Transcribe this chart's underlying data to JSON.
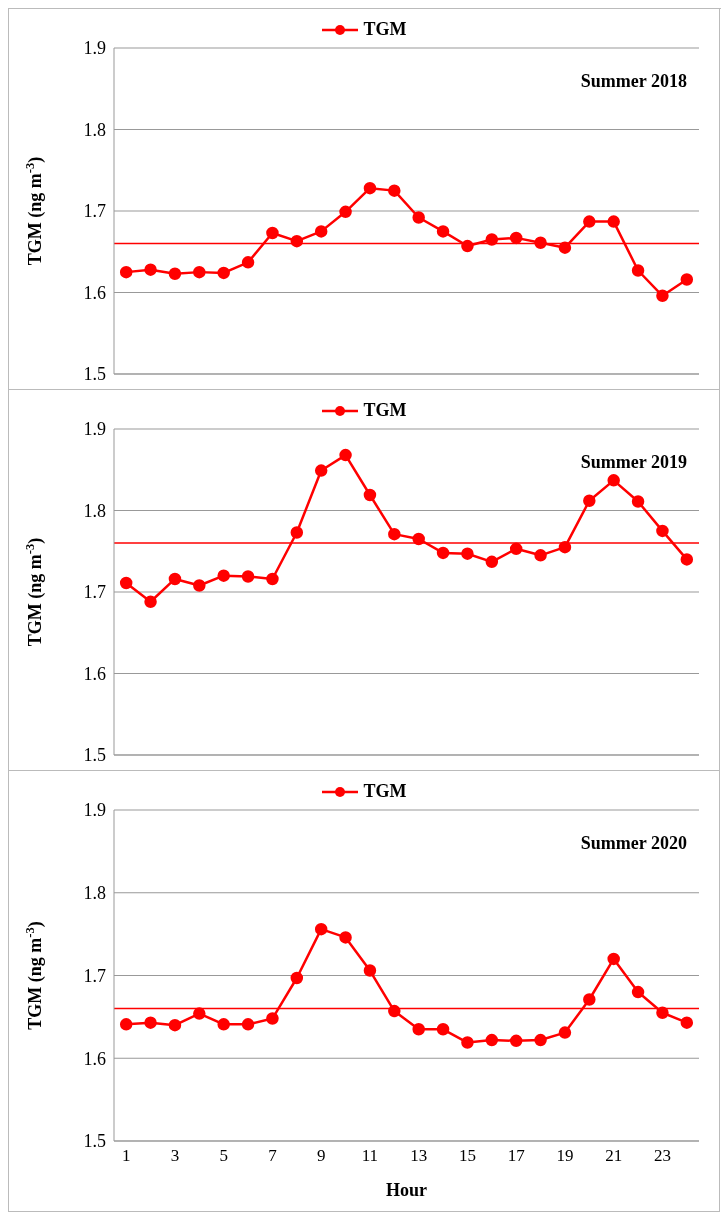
{
  "chart_data": [
    {
      "type": "line",
      "annotations": [
        "Summer 2018"
      ],
      "ylabel": "TGM  (ng m$^{-3}$)",
      "x": [
        1,
        2,
        3,
        4,
        5,
        6,
        7,
        8,
        9,
        10,
        11,
        12,
        13,
        14,
        15,
        16,
        17,
        18,
        19,
        20,
        21,
        22,
        23,
        24
      ],
      "xlim": [
        0.5,
        24.5
      ],
      "xticks": [
        1,
        3,
        5,
        7,
        9,
        11,
        13,
        15,
        17,
        19,
        21,
        23
      ],
      "ylim": [
        1.5,
        1.9
      ],
      "yticks": [
        1.5,
        1.6,
        1.7,
        1.8,
        1.9
      ],
      "tick_labels": "y",
      "grid": "y",
      "legend": "top",
      "marker": "circle",
      "line_style": "solid",
      "series": [
        {
          "name": "TGM",
          "color": "#ff0000",
          "values": [
            1.625,
            1.628,
            1.623,
            1.625,
            1.624,
            1.637,
            1.673,
            1.663,
            1.675,
            1.699,
            1.728,
            1.725,
            1.692,
            1.675,
            1.657,
            1.665,
            1.667,
            1.661,
            1.655,
            1.687,
            1.687,
            1.627,
            1.596,
            1.616
          ]
        }
      ],
      "ref_lines": [
        {
          "axis": "y",
          "value": 1.66,
          "color": "#ff0000"
        }
      ]
    },
    {
      "type": "line",
      "annotations": [
        "Summer 2019"
      ],
      "ylabel": "TGM  (ng m$^{-3}$)",
      "x": [
        1,
        2,
        3,
        4,
        5,
        6,
        7,
        8,
        9,
        10,
        11,
        12,
        13,
        14,
        15,
        16,
        17,
        18,
        19,
        20,
        21,
        22,
        23,
        24
      ],
      "xlim": [
        0.5,
        24.5
      ],
      "xticks": [
        1,
        3,
        5,
        7,
        9,
        11,
        13,
        15,
        17,
        19,
        21,
        23
      ],
      "ylim": [
        1.5,
        1.9
      ],
      "yticks": [
        1.5,
        1.6,
        1.7,
        1.8,
        1.9
      ],
      "tick_labels": "y",
      "grid": "y",
      "legend": "top",
      "marker": "circle",
      "line_style": "solid",
      "series": [
        {
          "name": "TGM",
          "color": "#ff0000",
          "values": [
            1.711,
            1.688,
            1.716,
            1.708,
            1.72,
            1.719,
            1.716,
            1.773,
            1.849,
            1.868,
            1.819,
            1.771,
            1.765,
            1.748,
            1.747,
            1.737,
            1.753,
            1.745,
            1.755,
            1.812,
            1.837,
            1.811,
            1.775,
            1.74
          ]
        }
      ],
      "ref_lines": [
        {
          "axis": "y",
          "value": 1.76,
          "color": "#ff0000"
        }
      ]
    },
    {
      "type": "line",
      "annotations": [
        "Summer 2020"
      ],
      "xlabel": "Hour",
      "ylabel": "TGM  (ng m$^{-3}$)",
      "x": [
        1,
        2,
        3,
        4,
        5,
        6,
        7,
        8,
        9,
        10,
        11,
        12,
        13,
        14,
        15,
        16,
        17,
        18,
        19,
        20,
        21,
        22,
        23,
        24
      ],
      "xlim": [
        0.5,
        24.5
      ],
      "xticks": [
        1,
        3,
        5,
        7,
        9,
        11,
        13,
        15,
        17,
        19,
        21,
        23
      ],
      "ylim": [
        1.5,
        1.9
      ],
      "yticks": [
        1.5,
        1.6,
        1.7,
        1.8,
        1.9
      ],
      "grid": "y",
      "legend": "top",
      "marker": "circle",
      "line_style": "solid",
      "series": [
        {
          "name": "TGM",
          "color": "#ff0000",
          "values": [
            1.641,
            1.643,
            1.64,
            1.654,
            1.641,
            1.641,
            1.648,
            1.697,
            1.756,
            1.746,
            1.706,
            1.657,
            1.635,
            1.635,
            1.619,
            1.622,
            1.621,
            1.622,
            1.631,
            1.671,
            1.72,
            1.68,
            1.655,
            1.643
          ]
        }
      ],
      "ref_lines": [
        {
          "axis": "y",
          "value": 1.66,
          "color": "#ff0000"
        }
      ]
    }
  ]
}
